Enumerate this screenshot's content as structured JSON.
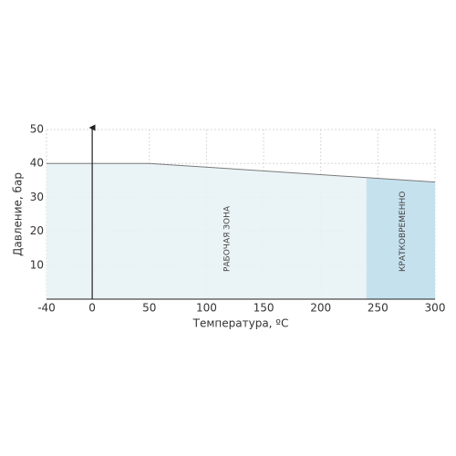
{
  "chart_data": {
    "type": "area",
    "x_label": "Температура, ºC",
    "y_label": "Давление, бар",
    "x": [
      -40,
      50,
      300
    ],
    "series": [
      {
        "name": "РАБОЧАЯ ЗОНА",
        "color": "#e8f3f6",
        "line_color": "#7a7a7a",
        "values": [
          40,
          40,
          34.5
        ]
      }
    ],
    "bands": [
      {
        "label": "КРАТКОВРЕМЕННО",
        "xlim": [
          240,
          300
        ],
        "color": "#c6e1ee"
      }
    ],
    "xlim": [
      -40,
      300
    ],
    "xticks": [
      -40,
      0,
      50,
      100,
      150,
      200,
      250,
      300
    ],
    "ylim": [
      0,
      50
    ],
    "yticks": [
      10,
      20,
      30,
      40,
      50
    ],
    "grid": true
  }
}
